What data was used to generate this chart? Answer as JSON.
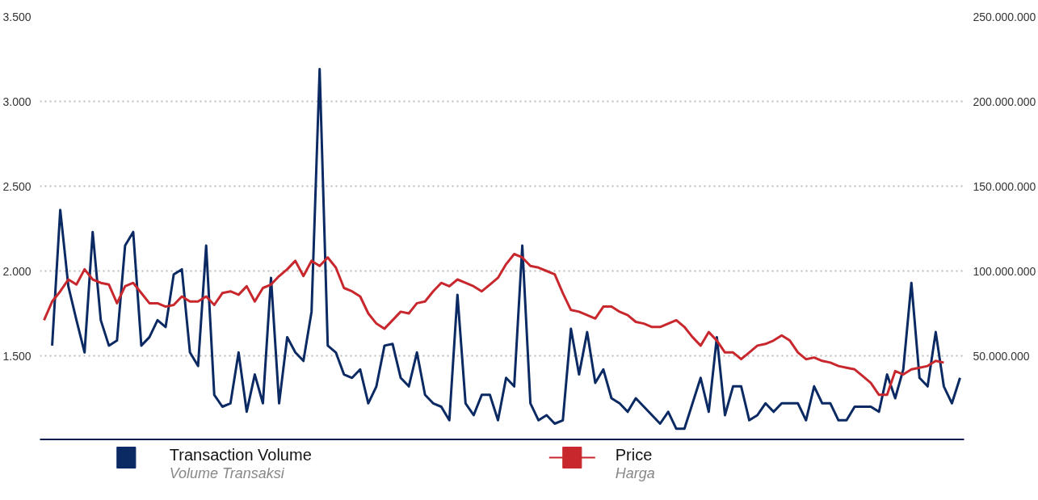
{
  "chart_data": {
    "type": "line",
    "categories": [
      null,
      null,
      null,
      null,
      null,
      null,
      null,
      null,
      null,
      null,
      null,
      null,
      null,
      null,
      null,
      null,
      null,
      null,
      null,
      null,
      null,
      null,
      null,
      null,
      null,
      null,
      null,
      null,
      null,
      null,
      null,
      null,
      null,
      null,
      null,
      null,
      null,
      null,
      null,
      null,
      null,
      null,
      null,
      null,
      null,
      null,
      null,
      null,
      null,
      null,
      null,
      null,
      null,
      null,
      null,
      null,
      null,
      null,
      null,
      null,
      null,
      null,
      null,
      null,
      null,
      null,
      null,
      null,
      null,
      null,
      null,
      null,
      null,
      null,
      null,
      null,
      null,
      null,
      null,
      null,
      null,
      null,
      null,
      null,
      null,
      null,
      null,
      null,
      null,
      null,
      null,
      null,
      null,
      null,
      null,
      null,
      null,
      null,
      null,
      null,
      null,
      null,
      null,
      null,
      null,
      null,
      null,
      null,
      null,
      null,
      null,
      null,
      null,
      null
    ],
    "series": [
      {
        "name": "Transaction Volume\nVolume Transaksi",
        "color": "#0b2a63",
        "axis": "y2",
        "values": [
          null,
          56000000,
          136000000,
          91000000,
          71000000,
          52000000,
          123000000,
          71000000,
          56000000,
          59000000,
          115000000,
          123000000,
          56000000,
          61000000,
          71000000,
          67000000,
          98000000,
          101000000,
          52000000,
          44000000,
          115000000,
          27000000,
          20000000,
          22000000,
          52000000,
          17000000,
          39000000,
          22000000,
          96000000,
          22000000,
          61000000,
          52000000,
          47000000,
          76000000,
          219000000,
          56000000,
          52000000,
          39000000,
          37000000,
          42000000,
          22000000,
          32000000,
          56000000,
          57000000,
          37000000,
          32000000,
          52000000,
          27000000,
          22000000,
          20000000,
          12000000,
          86000000,
          22000000,
          15000000,
          27000000,
          27000000,
          12000000,
          37000000,
          32000000,
          115000000,
          22000000,
          12000000,
          15000000,
          10000000,
          12000000,
          66000000,
          39000000,
          64000000,
          34000000,
          42000000,
          25000000,
          22000000,
          17000000,
          25000000,
          20000000,
          15000000,
          10000000,
          17000000,
          7000000,
          7000000,
          22000000,
          37000000,
          17000000,
          61000000,
          15000000,
          32000000,
          32000000,
          12000000,
          15000000,
          22000000,
          17000000,
          22000000,
          22000000,
          22000000,
          12000000,
          32000000,
          22000000,
          22000000,
          12000000,
          12000000,
          20000000,
          20000000,
          20000000,
          17000000,
          39000000,
          25000000,
          42000000,
          93000000,
          37000000,
          32000000,
          64000000,
          32000000,
          22000000,
          37000000
        ]
      },
      {
        "name": "Price\nHarga",
        "color": "#c8282d",
        "axis": "y",
        "values": [
          1710,
          1820,
          1880,
          1950,
          1920,
          2010,
          1950,
          1930,
          1920,
          1810,
          1910,
          1930,
          1870,
          1810,
          1810,
          1790,
          1800,
          1850,
          1820,
          1820,
          1850,
          1800,
          1870,
          1880,
          1860,
          1910,
          1820,
          1900,
          1920,
          1970,
          2010,
          2060,
          1970,
          2060,
          2030,
          2080,
          2020,
          1900,
          1880,
          1850,
          1750,
          1690,
          1660,
          1710,
          1760,
          1750,
          1810,
          1820,
          1880,
          1930,
          1910,
          1950,
          1930,
          1910,
          1880,
          1920,
          1960,
          2040,
          2100,
          2080,
          2030,
          2020,
          2000,
          1980,
          1870,
          1770,
          1760,
          1740,
          1720,
          1790,
          1790,
          1760,
          1740,
          1700,
          1690,
          1670,
          1670,
          1690,
          1710,
          1670,
          1610,
          1560,
          1640,
          1590,
          1520,
          1520,
          1480,
          1520,
          1560,
          1570,
          1590,
          1620,
          1590,
          1520,
          1480,
          1490,
          1470,
          1460,
          1440,
          1430,
          1420,
          1380,
          1340,
          1270,
          1270,
          1410,
          1390,
          1420,
          1430,
          1440,
          1470,
          1460,
          null,
          null
        ]
      }
    ],
    "ylim": [
      1000,
      3500
    ],
    "yticks": [
      {
        "value": 1500,
        "label": "1.500"
      },
      {
        "value": 2000,
        "label": "2.000"
      },
      {
        "value": 2500,
        "label": "2.500"
      },
      {
        "value": 3000,
        "label": "3.000"
      },
      {
        "value": 3500,
        "label": "3.500"
      }
    ],
    "y2lim": [
      0,
      250000000
    ],
    "y2ticks": [
      {
        "value": 50000000,
        "label": "50.000.000"
      },
      {
        "value": 100000000,
        "label": "100.000.000"
      },
      {
        "value": 150000000,
        "label": "150.000.000"
      },
      {
        "value": 200000000,
        "label": "200.000.000"
      },
      {
        "value": 250000000,
        "label": "250.000.000"
      }
    ],
    "grid": "y",
    "legend": "bottom",
    "tick_labels": "y",
    "marker": "none",
    "line_style": "solid"
  }
}
